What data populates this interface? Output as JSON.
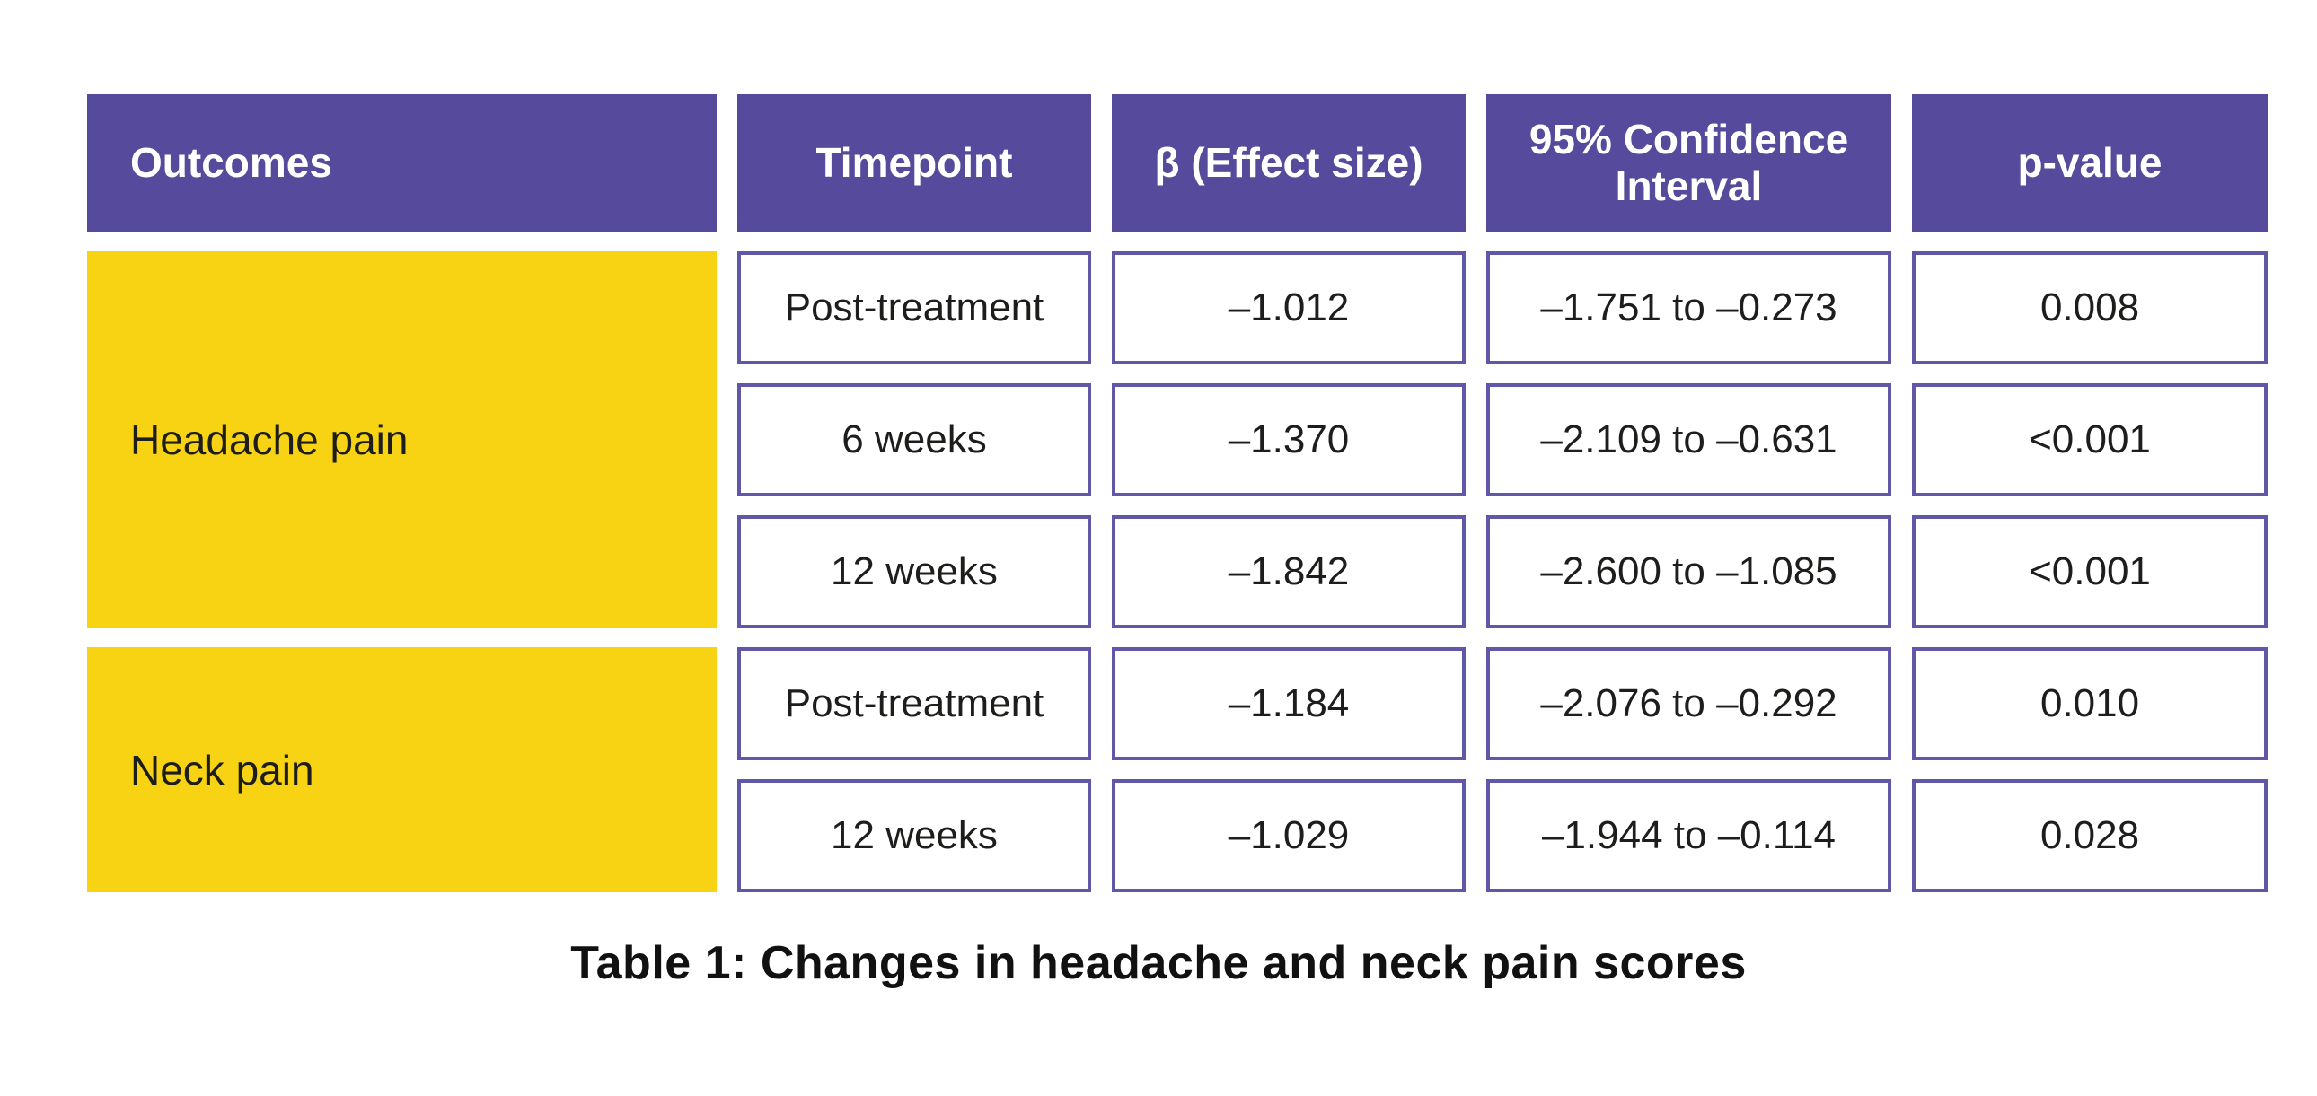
{
  "chart_data": {
    "type": "table",
    "title": "Table 1: Changes in headache and neck pain scores",
    "columns": [
      "Outcomes",
      "Timepoint",
      "β (Effect size)",
      "95% Confidence Interval",
      "p-value"
    ],
    "groups": [
      {
        "outcome": "Headache pain",
        "rows": [
          {
            "timepoint": "Post-treatment",
            "beta": "–1.012",
            "ci_95": "–1.751 to –0.273",
            "p_value": "0.008"
          },
          {
            "timepoint": "6 weeks",
            "beta": "–1.370",
            "ci_95": "–2.109 to –0.631",
            "p_value": "<0.001"
          },
          {
            "timepoint": "12 weeks",
            "beta": "–1.842",
            "ci_95": "–2.600 to –1.085",
            "p_value": "<0.001"
          }
        ]
      },
      {
        "outcome": "Neck pain",
        "rows": [
          {
            "timepoint": "Post-treatment",
            "beta": "–1.184",
            "ci_95": "–2.076 to –0.292",
            "p_value": "0.010"
          },
          {
            "timepoint": "12 weeks",
            "beta": "–1.029",
            "ci_95": "–1.944 to –0.114",
            "p_value": "0.028"
          }
        ]
      }
    ],
    "layout_hints": {
      "header_align": "center",
      "outcomes_align": "left",
      "data_align": "center",
      "legend_position": "none",
      "grid": "separated-cells"
    },
    "colors": {
      "header_bg": "#554a9b",
      "header_text": "#ffffff",
      "outcome_bg": "#f8d313",
      "cell_border": "#6057a8",
      "cell_bg": "#ffffff",
      "body_text": "#1d1d1b",
      "page_bg": "#ffffff"
    }
  }
}
